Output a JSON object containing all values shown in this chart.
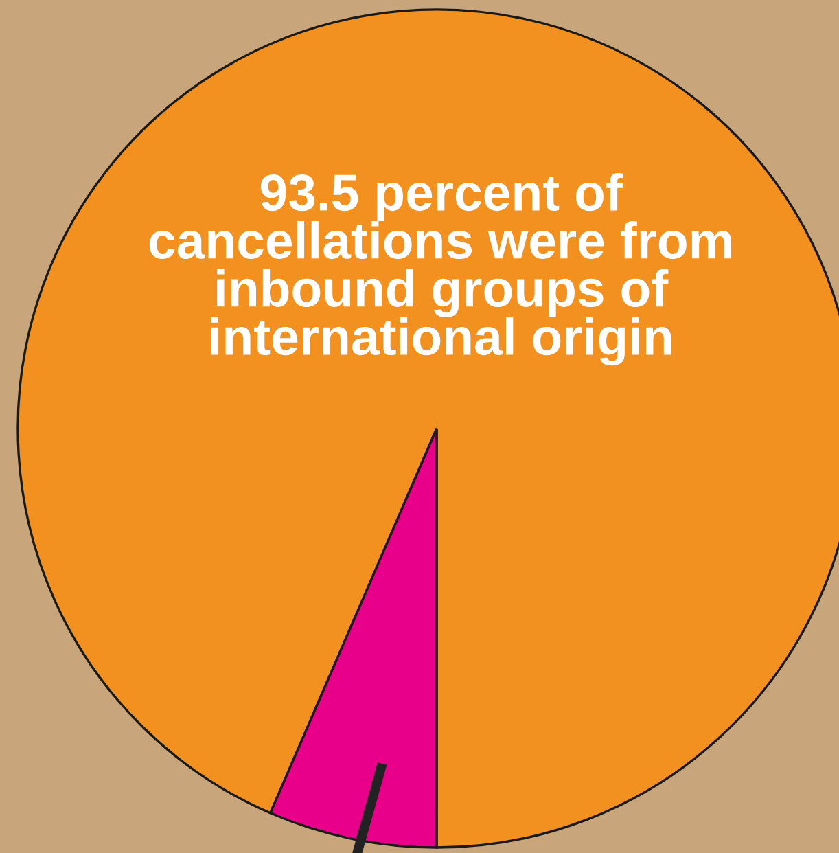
{
  "chart_data": {
    "type": "pie",
    "categories": [
      null,
      null
    ],
    "values": [
      93.5,
      6.5
    ],
    "colors": [
      "#f39120",
      "#e8008a"
    ],
    "annotations": [
      "93.5 percent of\ncancellations were from\ninbound groups of\ninternational origin"
    ]
  }
}
